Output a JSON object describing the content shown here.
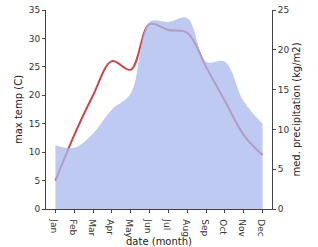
{
  "chart_data": {
    "type": "line",
    "x_label": "date (month)",
    "y_label": "max temp (C)",
    "y2_label": "med. precipitation (kg/m2)",
    "categories": [
      "Jan",
      "Feb",
      "Mar",
      "Apr",
      "May",
      "Jun",
      "Jul",
      "Aug",
      "Sep",
      "Oct",
      "Nov",
      "Dec"
    ],
    "series": [
      {
        "name": "med. precipitation (kg/m2)",
        "type": "area",
        "axis": "y2",
        "color": "#aab8ee",
        "values": [
          8,
          7.7,
          9.5,
          12.5,
          14.5,
          23.5,
          23.5,
          24,
          18.5,
          18.5,
          13.5,
          10.7
        ]
      },
      {
        "name": "max temp (C)",
        "type": "line",
        "color": "#c8474a",
        "values": [
          5,
          13,
          20,
          26,
          24.5,
          32.5,
          31.5,
          31,
          25,
          19,
          13,
          9.5
        ]
      }
    ],
    "ylim": [
      0,
      35
    ],
    "yticks": [
      0,
      5,
      10,
      15,
      20,
      25,
      30,
      35
    ],
    "y2lim": [
      0,
      25
    ],
    "y2ticks": [
      0,
      5,
      10,
      15,
      20,
      25
    ],
    "grid": false
  }
}
